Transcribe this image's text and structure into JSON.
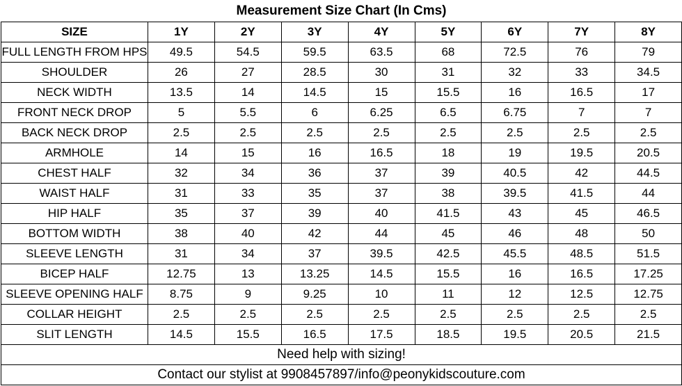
{
  "title": "Measurement Size Chart (In Cms)",
  "header": {
    "label": "SIZE",
    "sizes": [
      "1Y",
      "2Y",
      "3Y",
      "4Y",
      "5Y",
      "6Y",
      "7Y",
      "8Y"
    ]
  },
  "rows": [
    {
      "label": "FULL LENGTH FROM HPS",
      "values": [
        "49.5",
        "54.5",
        "59.5",
        "63.5",
        "68",
        "72.5",
        "76",
        "79"
      ]
    },
    {
      "label": "SHOULDER",
      "values": [
        "26",
        "27",
        "28.5",
        "30",
        "31",
        "32",
        "33",
        "34.5"
      ]
    },
    {
      "label": "NECK WIDTH",
      "values": [
        "13.5",
        "14",
        "14.5",
        "15",
        "15.5",
        "16",
        "16.5",
        "17"
      ]
    },
    {
      "label": "FRONT NECK DROP",
      "values": [
        "5",
        "5.5",
        "6",
        "6.25",
        "6.5",
        "6.75",
        "7",
        "7"
      ]
    },
    {
      "label": "BACK NECK DROP",
      "values": [
        "2.5",
        "2.5",
        "2.5",
        "2.5",
        "2.5",
        "2.5",
        "2.5",
        "2.5"
      ]
    },
    {
      "label": "ARMHOLE",
      "values": [
        "14",
        "15",
        "16",
        "16.5",
        "18",
        "19",
        "19.5",
        "20.5"
      ]
    },
    {
      "label": "CHEST HALF",
      "values": [
        "32",
        "34",
        "36",
        "37",
        "39",
        "40.5",
        "42",
        "44.5"
      ]
    },
    {
      "label": "WAIST HALF",
      "values": [
        "31",
        "33",
        "35",
        "37",
        "38",
        "39.5",
        "41.5",
        "44"
      ]
    },
    {
      "label": "HIP HALF",
      "values": [
        "35",
        "37",
        "39",
        "40",
        "41.5",
        "43",
        "45",
        "46.5"
      ]
    },
    {
      "label": "BOTTOM WIDTH",
      "values": [
        "38",
        "40",
        "42",
        "44",
        "45",
        "46",
        "48",
        "50"
      ]
    },
    {
      "label": "SLEEVE LENGTH",
      "values": [
        "31",
        "34",
        "37",
        "39.5",
        "42.5",
        "45.5",
        "48.5",
        "51.5"
      ]
    },
    {
      "label": "BICEP HALF",
      "values": [
        "12.75",
        "13",
        "13.25",
        "14.5",
        "15.5",
        "16",
        "16.5",
        "17.25"
      ]
    },
    {
      "label": "SLEEVE OPENING HALF",
      "values": [
        "8.75",
        "9",
        "9.25",
        "10",
        "11",
        "12",
        "12.5",
        "12.75"
      ]
    },
    {
      "label": "COLLAR HEIGHT",
      "values": [
        "2.5",
        "2.5",
        "2.5",
        "2.5",
        "2.5",
        "2.5",
        "2.5",
        "2.5"
      ]
    },
    {
      "label": "SLIT LENGTH",
      "values": [
        "14.5",
        "15.5",
        "16.5",
        "17.5",
        "18.5",
        "19.5",
        "20.5",
        "21.5"
      ]
    }
  ],
  "footer": {
    "help": "Need help with sizing!",
    "contact": "Contact our stylist at 9908457897/info@peonykidscouture.com"
  }
}
